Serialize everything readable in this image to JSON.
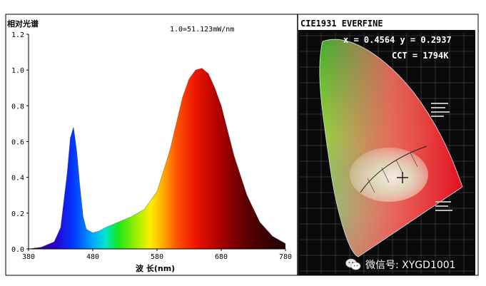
{
  "colors": {
    "frame": "#000000",
    "background": "#ffffff",
    "cie_background": "#000000"
  },
  "chart_data": [
    {
      "type": "area",
      "title": "1.0=51.123mW/nm",
      "ylabel": "相对光谱",
      "xlabel": "波 长(nm)",
      "xlim": [
        380,
        780
      ],
      "ylim": [
        0,
        1.2
      ],
      "xticks": [
        "380",
        "480",
        "580",
        "680",
        "780"
      ],
      "yticks": [
        "0.0",
        "0.2",
        "0.4",
        "0.6",
        "0.8",
        "1.0",
        "1.2"
      ],
      "fill": "visible-spectrum colors by wavelength",
      "grid": false,
      "series": [
        {
          "x": [
            380,
            400,
            420,
            430,
            440,
            445,
            450,
            455,
            460,
            465,
            470,
            480,
            490,
            500,
            520,
            540,
            560,
            580,
            600,
            610,
            620,
            630,
            640,
            650,
            660,
            670,
            680,
            690,
            700,
            720,
            740,
            760,
            780
          ],
          "values": [
            0.0,
            0.01,
            0.04,
            0.12,
            0.42,
            0.62,
            0.68,
            0.55,
            0.35,
            0.18,
            0.11,
            0.09,
            0.1,
            0.12,
            0.15,
            0.18,
            0.22,
            0.32,
            0.55,
            0.7,
            0.85,
            0.95,
            1.0,
            1.01,
            0.98,
            0.9,
            0.8,
            0.66,
            0.52,
            0.3,
            0.15,
            0.07,
            0.03
          ]
        }
      ]
    },
    {
      "type": "scatter",
      "title": "CIE1931 EVERFINE",
      "annotations": [
        "x = 0.4564 y = 0.2937",
        "CCT = 1794K"
      ],
      "series": [
        {
          "x": [
            0.4564
          ],
          "values": [
            0.2937
          ]
        }
      ]
    }
  ],
  "watermark": {
    "text": "微信号: XYGD1001",
    "icon": "wechat-icon"
  }
}
